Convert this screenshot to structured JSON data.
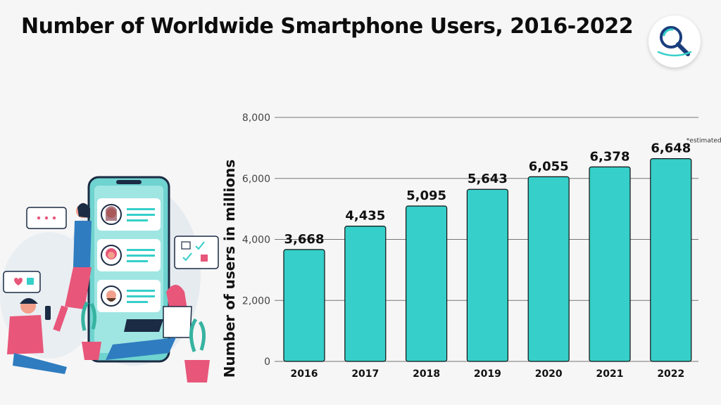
{
  "page": {
    "title": "Number of Worldwide Smartphone Users, 2016-2022",
    "logo_icon": "magnifier-icon"
  },
  "colors": {
    "bar_fill": "#36cfc9",
    "bar_stroke": "#111111",
    "grid": "#777777",
    "text": "#111111"
  },
  "chart_data": {
    "type": "bar",
    "categories": [
      "2016",
      "2017",
      "2018",
      "2019",
      "2020",
      "2021",
      "2022"
    ],
    "values": [
      3668,
      4435,
      5095,
      5643,
      6055,
      6378,
      6648
    ],
    "value_labels": [
      "3,668",
      "4,435",
      "5,095",
      "5,643",
      "6,055",
      "6,378",
      "6,648"
    ],
    "ylabel": "Number of users in millions",
    "xlabel": "",
    "ylim": [
      0,
      8000
    ],
    "yticks": [
      0,
      2000,
      4000,
      6000,
      8000
    ],
    "ytick_labels": [
      "0",
      "2,000",
      "4,000",
      "6,000",
      "8,000"
    ],
    "grid": true,
    "annotations": [
      {
        "category": "2022",
        "text": "*estimated"
      }
    ]
  }
}
